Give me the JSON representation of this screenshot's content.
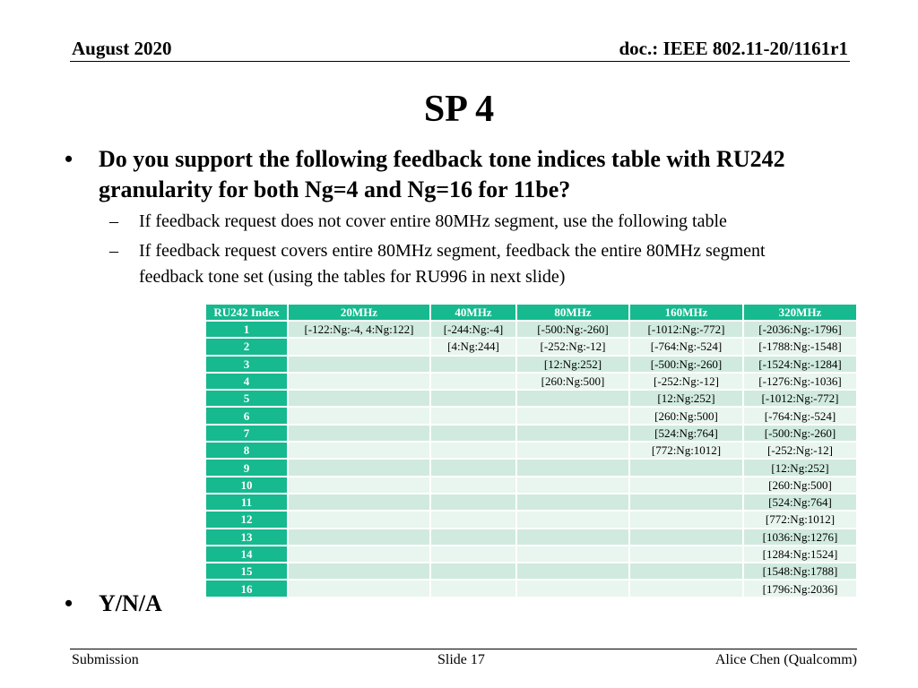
{
  "header": {
    "date": "August 2020",
    "doc": "doc.: IEEE 802.11-20/1161r1"
  },
  "title": "SP 4",
  "bullets": {
    "main": "Do you support the following feedback tone indices table with RU242 granularity for both Ng=4 and Ng=16 for 11be?",
    "sub1": "If feedback request does not cover entire 80MHz segment, use the following table",
    "sub2": "If feedback request covers entire 80MHz segment, feedback the entire 80MHz segment feedback tone set (using the tables for RU996 in next slide)",
    "answer": "Y/N/A",
    "bullet_glyph": "•",
    "dash_glyph": "–"
  },
  "table": {
    "headers": [
      "RU242 Index",
      "20MHz",
      "40MHz",
      "80MHz",
      "160MHz",
      "320MHz"
    ],
    "rows": [
      [
        "1",
        "[-122:Ng:-4, 4:Ng:122]",
        "[-244:Ng:-4]",
        "[-500:Ng:-260]",
        "[-1012:Ng:-772]",
        "[-2036:Ng:-1796]"
      ],
      [
        "2",
        "",
        "[4:Ng:244]",
        "[-252:Ng:-12]",
        "[-764:Ng:-524]",
        "[-1788:Ng:-1548]"
      ],
      [
        "3",
        "",
        "",
        "[12:Ng:252]",
        "[-500:Ng:-260]",
        "[-1524:Ng:-1284]"
      ],
      [
        "4",
        "",
        "",
        "[260:Ng:500]",
        "[-252:Ng:-12]",
        "[-1276:Ng:-1036]"
      ],
      [
        "5",
        "",
        "",
        "",
        "[12:Ng:252]",
        "[-1012:Ng:-772]"
      ],
      [
        "6",
        "",
        "",
        "",
        "[260:Ng:500]",
        "[-764:Ng:-524]"
      ],
      [
        "7",
        "",
        "",
        "",
        "[524:Ng:764]",
        "[-500:Ng:-260]"
      ],
      [
        "8",
        "",
        "",
        "",
        "[772:Ng:1012]",
        "[-252:Ng:-12]"
      ],
      [
        "9",
        "",
        "",
        "",
        "",
        "[12:Ng:252]"
      ],
      [
        "10",
        "",
        "",
        "",
        "",
        "[260:Ng:500]"
      ],
      [
        "11",
        "",
        "",
        "",
        "",
        "[524:Ng:764]"
      ],
      [
        "12",
        "",
        "",
        "",
        "",
        "[772:Ng:1012]"
      ],
      [
        "13",
        "",
        "",
        "",
        "",
        "[1036:Ng:1276]"
      ],
      [
        "14",
        "",
        "",
        "",
        "",
        "[1284:Ng:1524]"
      ],
      [
        "15",
        "",
        "",
        "",
        "",
        "[1548:Ng:1788]"
      ],
      [
        "16",
        "",
        "",
        "",
        "",
        "[1796:Ng:2036]"
      ]
    ],
    "colors": {
      "header": "#17b98f",
      "row_odd": "#d0eadf",
      "row_even": "#e9f5ef"
    }
  },
  "footer": {
    "left": "Submission",
    "center": "Slide 17",
    "right": "Alice Chen (Qualcomm)"
  }
}
